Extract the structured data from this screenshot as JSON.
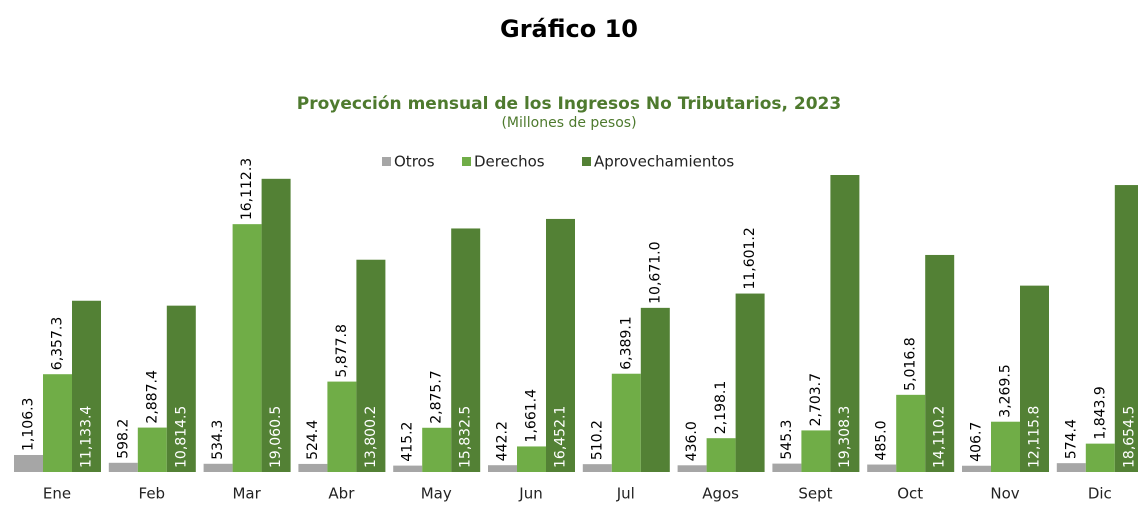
{
  "chart_data": {
    "type": "bar",
    "title": "Gráfico 10",
    "subtitle": "Proyección mensual de los Ingresos No Tributarios, 2023",
    "units": "(Millones de pesos)",
    "categories": [
      "Ene",
      "Feb",
      "Mar",
      "Abr",
      "May",
      "Jun",
      "Jul",
      "Agos",
      "Sept",
      "Oct",
      "Nov",
      "Dic"
    ],
    "series": [
      {
        "name": "Otros",
        "color": "#a6a6a6",
        "values": [
          1106.3,
          598.2,
          534.3,
          524.4,
          415.2,
          442.2,
          510.2,
          436.0,
          545.3,
          485.0,
          406.7,
          574.4
        ],
        "value_labels": [
          "1,106.3",
          "598.2",
          "534.3",
          "524.4",
          "415.2",
          "442.2",
          "510.2",
          "436.0",
          "545.3",
          "485.0",
          "406.7",
          "574.4"
        ]
      },
      {
        "name": "Derechos",
        "color": "#70ad47",
        "values": [
          6357.3,
          2887.4,
          16112.3,
          5877.8,
          2875.7,
          1661.4,
          6389.1,
          2198.1,
          2703.7,
          5016.8,
          3269.5,
          1843.9
        ],
        "value_labels": [
          "6,357.3",
          "2,887.4",
          "16,112.3",
          "5,877.8",
          "2,875.7",
          "1,661.4",
          "6,389.1",
          "2,198.1",
          "2,703.7",
          "5,016.8",
          "3,269.5",
          "1,843.9"
        ]
      },
      {
        "name": "Aprovechamientos",
        "color": "#538135",
        "values": [
          11133.4,
          10814.5,
          19060.5,
          13800.2,
          15832.5,
          16452.1,
          10671.0,
          11601.2,
          19308.3,
          14110.2,
          12115.8,
          18654.5
        ],
        "value_labels": [
          "11,133.4",
          "10,814.5",
          "19,060.5",
          "13,800.2",
          "15,832.5",
          "16,452.1",
          "10,671.0",
          "11,601.2",
          "19,308.3",
          "14,110.2",
          "12,115.8",
          "18,654.5"
        ],
        "label_inside": [
          true,
          true,
          true,
          true,
          true,
          true,
          false,
          false,
          true,
          true,
          true,
          true
        ]
      }
    ],
    "legend": "top"
  }
}
